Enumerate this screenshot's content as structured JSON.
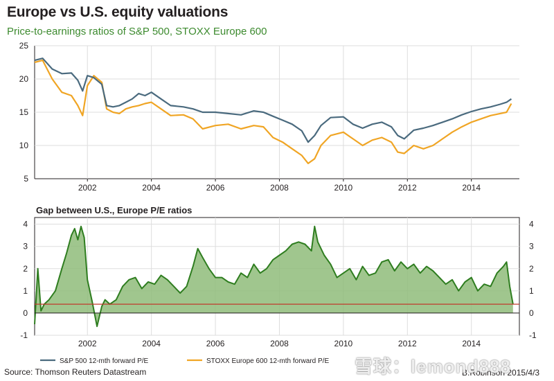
{
  "title": "Europe vs U.S. equity valuations",
  "subtitle": "Price-to-earnings ratios of S&P 500, STOXX Europe 600",
  "source": "Source: Thomson Reuters Datastream",
  "credit": "B.Robinson  2015/4/3",
  "watermark": "雪球：lemond888",
  "colors": {
    "sp500": "#4a6a7e",
    "stoxx": "#f0a524",
    "gap_line": "#2e7d1f",
    "gap_fill": "#8fbc7a",
    "avg_line": "#c0392b",
    "grid": "#dddddd"
  },
  "chart_data": [
    {
      "type": "line",
      "x_ticks": [
        "2002",
        "2004",
        "2006",
        "2008",
        "2010",
        "2012",
        "2014"
      ],
      "y_ticks": [
        5,
        10,
        15,
        20,
        25
      ],
      "xlim": [
        2000.35,
        2015.5
      ],
      "ylim": [
        5,
        25
      ],
      "grid": true,
      "series": [
        {
          "name": "S&P 500 12-mth forward P/E",
          "x": [
            2000.35,
            2000.6,
            2000.9,
            2001.2,
            2001.5,
            2001.7,
            2001.85,
            2002.0,
            2002.2,
            2002.45,
            2002.6,
            2002.8,
            2003.0,
            2003.2,
            2003.4,
            2003.6,
            2003.8,
            2004.0,
            2004.3,
            2004.6,
            2005.0,
            2005.3,
            2005.6,
            2006.0,
            2006.4,
            2006.8,
            2007.2,
            2007.5,
            2007.8,
            2008.1,
            2008.4,
            2008.7,
            2008.9,
            2009.1,
            2009.3,
            2009.6,
            2010.0,
            2010.3,
            2010.6,
            2010.9,
            2011.2,
            2011.5,
            2011.7,
            2011.9,
            2012.2,
            2012.5,
            2012.8,
            2013.1,
            2013.4,
            2013.7,
            2014.0,
            2014.3,
            2014.6,
            2014.9,
            2015.1,
            2015.25
          ],
          "values": [
            22.8,
            23.1,
            21.5,
            20.8,
            20.9,
            19.8,
            18.2,
            20.5,
            20.2,
            19.2,
            16.0,
            15.8,
            16.0,
            16.5,
            17.0,
            17.8,
            17.5,
            18.0,
            17.0,
            16.0,
            15.8,
            15.5,
            15.0,
            15.0,
            14.8,
            14.6,
            15.2,
            15.0,
            14.4,
            13.8,
            13.2,
            12.2,
            10.5,
            11.5,
            13.0,
            14.2,
            14.3,
            13.2,
            12.6,
            13.2,
            13.5,
            12.8,
            11.5,
            11.0,
            12.3,
            12.6,
            13.0,
            13.5,
            14.0,
            14.6,
            15.1,
            15.5,
            15.8,
            16.2,
            16.5,
            17.0
          ]
        },
        {
          "name": "STOXX Europe 600 12-mth forward P/E",
          "x": [
            2000.35,
            2000.6,
            2000.9,
            2001.2,
            2001.5,
            2001.7,
            2001.85,
            2002.0,
            2002.2,
            2002.45,
            2002.6,
            2002.8,
            2003.0,
            2003.2,
            2003.4,
            2003.6,
            2003.8,
            2004.0,
            2004.3,
            2004.6,
            2005.0,
            2005.3,
            2005.6,
            2006.0,
            2006.4,
            2006.8,
            2007.2,
            2007.5,
            2007.8,
            2008.1,
            2008.4,
            2008.7,
            2008.9,
            2009.1,
            2009.3,
            2009.6,
            2010.0,
            2010.3,
            2010.6,
            2010.9,
            2011.2,
            2011.5,
            2011.7,
            2011.9,
            2012.2,
            2012.5,
            2012.8,
            2013.1,
            2013.4,
            2013.7,
            2014.0,
            2014.3,
            2014.6,
            2014.9,
            2015.1,
            2015.25
          ],
          "values": [
            22.5,
            22.8,
            20.0,
            18.0,
            17.5,
            16.0,
            14.5,
            19.0,
            20.5,
            19.5,
            15.5,
            15.0,
            14.8,
            15.5,
            15.8,
            16.0,
            16.3,
            16.5,
            15.5,
            14.5,
            14.6,
            14.0,
            12.5,
            13.0,
            13.2,
            12.5,
            13.0,
            12.8,
            11.2,
            10.5,
            9.5,
            8.5,
            7.3,
            8.0,
            10.0,
            11.5,
            12.0,
            11.0,
            10.0,
            10.8,
            11.2,
            10.5,
            9.0,
            8.8,
            10.0,
            9.5,
            10.0,
            11.0,
            12.0,
            12.8,
            13.5,
            14.0,
            14.5,
            14.8,
            15.0,
            16.3
          ]
        }
      ]
    },
    {
      "type": "area",
      "title": "Gap between U.S., Europe P/E ratios",
      "x_ticks": [
        "2002",
        "2004",
        "2006",
        "2008",
        "2010",
        "2012",
        "2014"
      ],
      "y_ticks": [
        -1,
        0,
        1,
        2,
        3,
        4
      ],
      "xlim": [
        2000.35,
        2015.5
      ],
      "ylim": [
        -1,
        4.3
      ],
      "grid": true,
      "average": 0.4,
      "series": [
        {
          "name": "Gap",
          "x": [
            2000.35,
            2000.45,
            2000.55,
            2000.65,
            2000.8,
            2001.0,
            2001.2,
            2001.35,
            2001.5,
            2001.6,
            2001.7,
            2001.8,
            2001.9,
            2002.0,
            2002.15,
            2002.3,
            2002.45,
            2002.55,
            2002.7,
            2002.9,
            2003.1,
            2003.3,
            2003.5,
            2003.7,
            2003.9,
            2004.1,
            2004.3,
            2004.5,
            2004.7,
            2004.9,
            2005.1,
            2005.3,
            2005.45,
            2005.6,
            2005.8,
            2006.0,
            2006.2,
            2006.4,
            2006.6,
            2006.8,
            2007.0,
            2007.2,
            2007.4,
            2007.6,
            2007.8,
            2008.0,
            2008.2,
            2008.4,
            2008.6,
            2008.8,
            2009.0,
            2009.1,
            2009.2,
            2009.4,
            2009.6,
            2009.8,
            2010.0,
            2010.2,
            2010.4,
            2010.6,
            2010.8,
            2011.0,
            2011.2,
            2011.4,
            2011.6,
            2011.8,
            2012.0,
            2012.2,
            2012.4,
            2012.6,
            2012.8,
            2013.0,
            2013.2,
            2013.4,
            2013.6,
            2013.8,
            2014.0,
            2014.2,
            2014.4,
            2014.6,
            2014.8,
            2015.0,
            2015.1,
            2015.2,
            2015.3
          ],
          "values": [
            -0.5,
            2.0,
            0.1,
            0.4,
            0.6,
            1.0,
            2.0,
            2.7,
            3.5,
            3.8,
            3.3,
            3.9,
            3.4,
            1.5,
            0.5,
            -0.6,
            0.3,
            0.6,
            0.4,
            0.6,
            1.2,
            1.5,
            1.6,
            1.1,
            1.4,
            1.3,
            1.7,
            1.5,
            1.2,
            0.9,
            1.2,
            2.1,
            2.9,
            2.5,
            2.0,
            1.6,
            1.6,
            1.4,
            1.3,
            1.8,
            1.6,
            2.2,
            1.8,
            2.0,
            2.4,
            2.6,
            2.8,
            3.1,
            3.2,
            3.1,
            2.8,
            3.9,
            3.2,
            2.6,
            2.2,
            1.6,
            1.8,
            2.0,
            1.5,
            2.1,
            1.7,
            1.8,
            2.3,
            2.4,
            1.9,
            2.3,
            2.0,
            2.2,
            1.8,
            2.1,
            1.9,
            1.6,
            1.3,
            1.5,
            1.0,
            1.4,
            1.6,
            1.0,
            1.3,
            1.2,
            1.8,
            2.1,
            2.3,
            1.2,
            0.4
          ]
        }
      ]
    }
  ]
}
